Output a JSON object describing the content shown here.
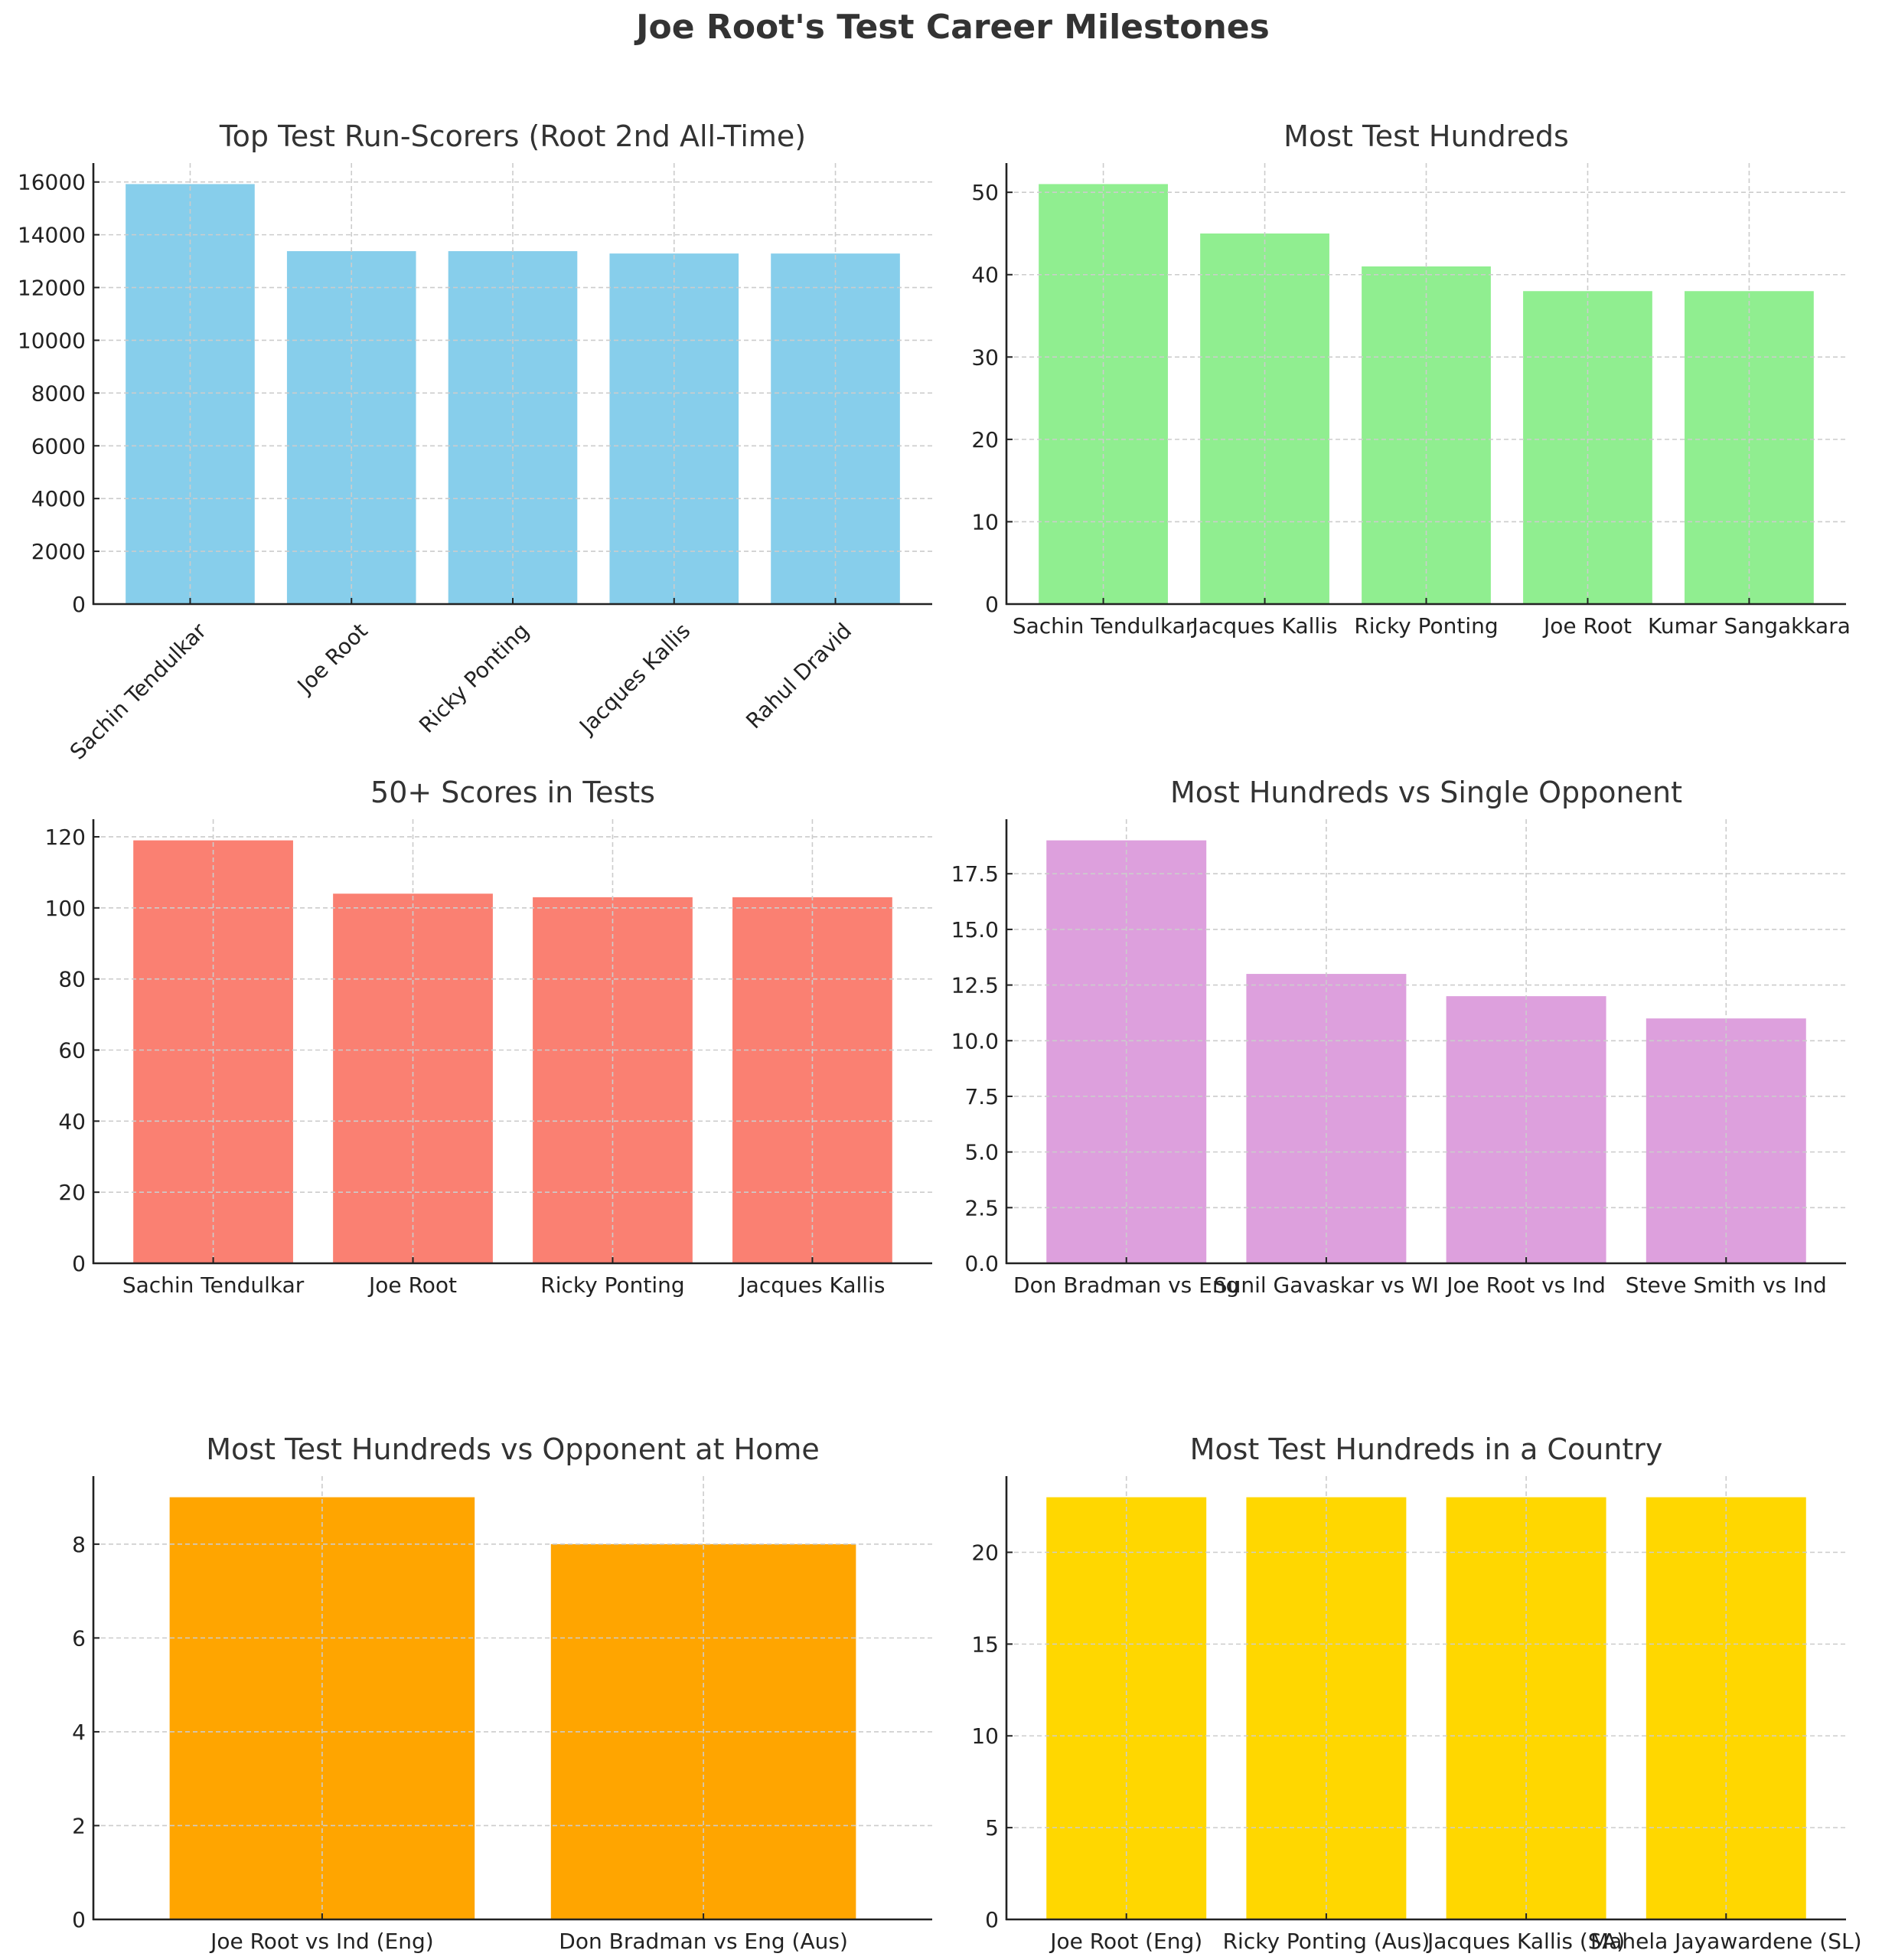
{
  "figure": {
    "title": "Joe Root's Test Career Milestones"
  },
  "chart_data": [
    {
      "type": "bar",
      "title": "Top Test Run-Scorers (Root 2nd All-Time)",
      "categories": [
        "Sachin Tendulkar",
        "Joe Root",
        "Ricky Ponting",
        "Jacques Kallis",
        "Rahul Dravid"
      ],
      "values": [
        15921,
        13378,
        13378,
        13289,
        13288
      ],
      "color": "#87CEEB",
      "xlabel": "",
      "ylabel": "",
      "ylim": [
        0,
        16717
      ],
      "yticks": [
        0,
        2000,
        4000,
        6000,
        8000,
        10000,
        12000,
        14000,
        16000
      ],
      "ytick_labels": [
        "0",
        "2000",
        "4000",
        "6000",
        "8000",
        "10000",
        "12000",
        "14000",
        "16000"
      ],
      "xtick_rotation": 45,
      "grid": true
    },
    {
      "type": "bar",
      "title": "Most Test Hundreds",
      "categories": [
        "Sachin Tendulkar",
        "Jacques Kallis",
        "Ricky Ponting",
        "Joe Root",
        "Kumar Sangakkara"
      ],
      "values": [
        51,
        45,
        41,
        38,
        38
      ],
      "color": "#90EE90",
      "xlabel": "",
      "ylabel": "",
      "ylim": [
        0,
        53.55
      ],
      "yticks": [
        0,
        10,
        20,
        30,
        40,
        50
      ],
      "ytick_labels": [
        "0",
        "10",
        "20",
        "30",
        "40",
        "50"
      ],
      "xtick_rotation": 0,
      "grid": true
    },
    {
      "type": "bar",
      "title": "50+ Scores in Tests",
      "categories": [
        "Sachin Tendulkar",
        "Joe Root",
        "Ricky Ponting",
        "Jacques Kallis"
      ],
      "values": [
        119,
        104,
        103,
        103
      ],
      "color": "#FA8072",
      "xlabel": "",
      "ylabel": "",
      "ylim": [
        0,
        124.95
      ],
      "yticks": [
        0,
        20,
        40,
        60,
        80,
        100,
        120
      ],
      "ytick_labels": [
        "0",
        "20",
        "40",
        "60",
        "80",
        "100",
        "120"
      ],
      "xtick_rotation": 0,
      "grid": true
    },
    {
      "type": "bar",
      "title": "Most Hundreds vs Single Opponent",
      "categories": [
        "Don Bradman vs Eng",
        "Sunil Gavaskar vs WI",
        "Joe Root vs Ind",
        "Steve Smith vs Ind"
      ],
      "values": [
        19,
        13,
        12,
        11
      ],
      "color": "#DDA0DD",
      "xlabel": "",
      "ylabel": "",
      "ylim": [
        0,
        19.95
      ],
      "yticks": [
        0,
        2.5,
        5,
        7.5,
        10,
        12.5,
        15,
        17.5
      ],
      "ytick_labels": [
        "0.0",
        "2.5",
        "5.0",
        "7.5",
        "10.0",
        "12.5",
        "15.0",
        "17.5"
      ],
      "xtick_rotation": 0,
      "grid": true
    },
    {
      "type": "bar",
      "title": "Most Test Hundreds vs Opponent at Home",
      "categories": [
        "Joe Root vs Ind (Eng)",
        "Don Bradman vs Eng (Aus)"
      ],
      "values": [
        9,
        8
      ],
      "color": "#FFA500",
      "xlabel": "",
      "ylabel": "",
      "ylim": [
        0,
        9.45
      ],
      "yticks": [
        0,
        2,
        4,
        6,
        8
      ],
      "ytick_labels": [
        "0",
        "2",
        "4",
        "6",
        "8"
      ],
      "xtick_rotation": 0,
      "grid": true
    },
    {
      "type": "bar",
      "title": "Most Test Hundreds in a Country",
      "categories": [
        "Joe Root (Eng)",
        "Ricky Ponting (Aus)",
        "Jacques Kallis (SA)",
        "Mahela Jayawardene (SL)"
      ],
      "values": [
        23,
        23,
        23,
        23
      ],
      "color": "#FFD700",
      "xlabel": "",
      "ylabel": "",
      "ylim": [
        0,
        24.15
      ],
      "yticks": [
        0,
        5,
        10,
        15,
        20
      ],
      "ytick_labels": [
        "0",
        "5",
        "10",
        "15",
        "20"
      ],
      "xtick_rotation": 0,
      "grid": true
    }
  ]
}
